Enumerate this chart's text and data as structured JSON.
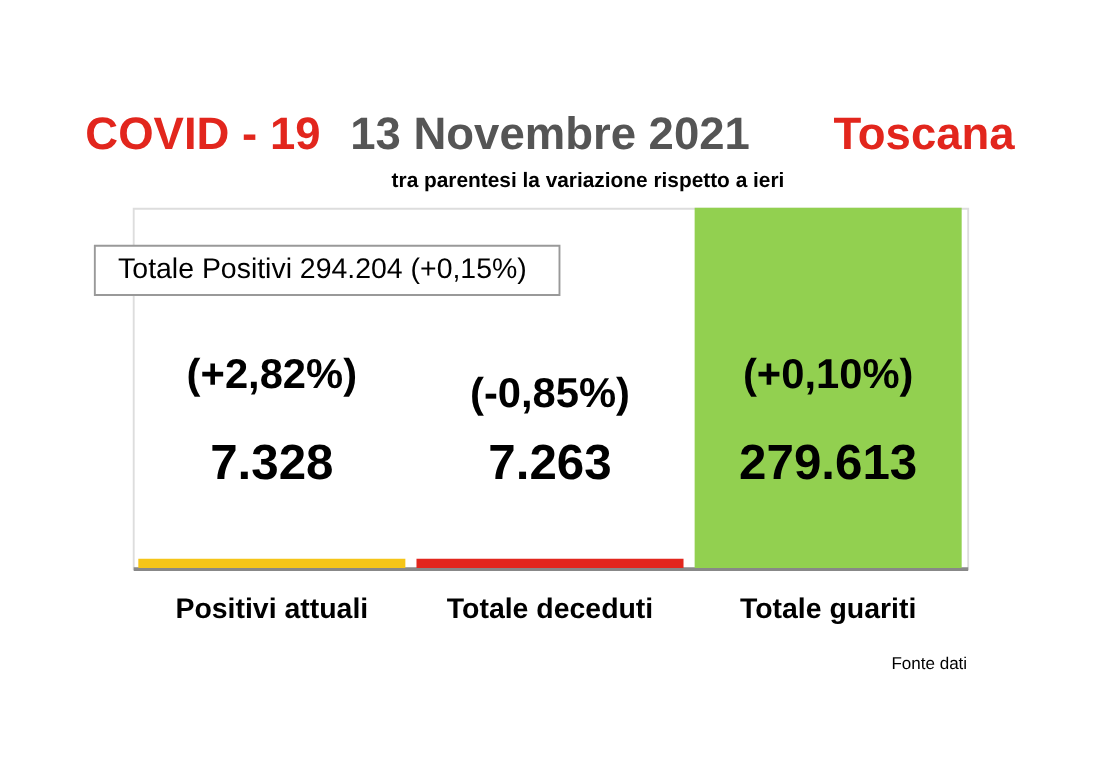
{
  "chart_data": {
    "type": "bar",
    "title": "13 Novembre 2021",
    "subtitle": "tra parentesi la variazione rispetto a ieri",
    "categories": [
      "Positivi attuali",
      "Totale deceduti",
      "Totale guariti"
    ],
    "values": [
      7328,
      7263,
      279613
    ],
    "colors": [
      "#f5c518",
      "#e2261d",
      "#92d050"
    ],
    "value_labels": [
      "7.328",
      "7.263",
      "279.613"
    ],
    "annotations": [
      "COVID - 19",
      "Toscana",
      "Totale Positivi    294.204 (+0,15%)",
      "(+2,82%)",
      "(-0,85%)",
      "(+0,10%)",
      "Fonte dati"
    ]
  }
}
